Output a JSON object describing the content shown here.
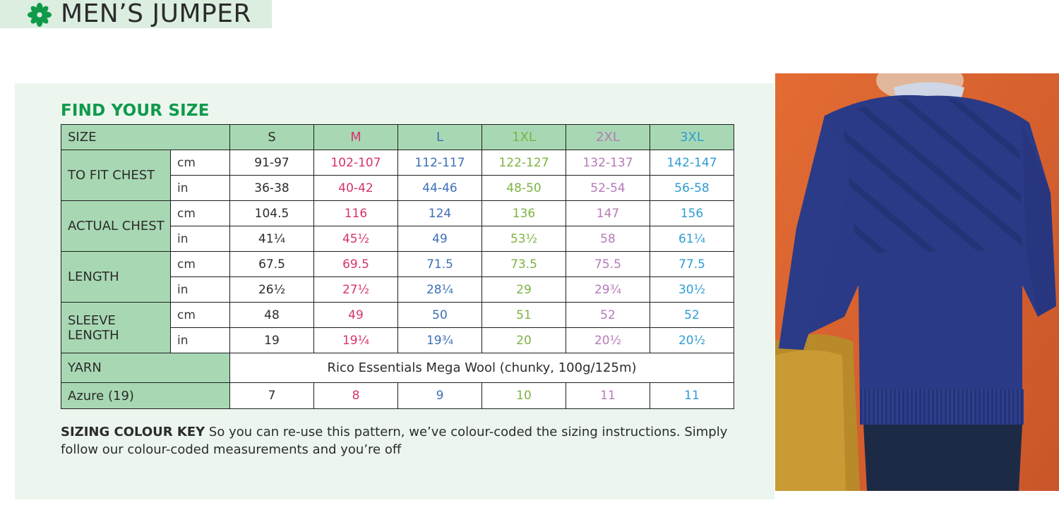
{
  "header": {
    "title": "MEN’S JUMPER",
    "icon": "flower-icon"
  },
  "section_title": "FIND YOUR SIZE",
  "table": {
    "size_label": "SIZE",
    "sizes": [
      "S",
      "M",
      "L",
      "1XL",
      "2XL",
      "3XL"
    ],
    "size_colors": [
      "#2b2b2b",
      "#d6336c",
      "#3d6fb6",
      "#7cb342",
      "#b57ab8",
      "#2e9cd4"
    ],
    "units": {
      "cm": "cm",
      "in": "in"
    },
    "rows": {
      "chest": {
        "label": "TO FIT CHEST",
        "cm": [
          "91-97",
          "102-107",
          "112-117",
          "122-127",
          "132-137",
          "142-147"
        ],
        "in": [
          "36-38",
          "40-42",
          "44-46",
          "48-50",
          "52-54",
          "56-58"
        ]
      },
      "actual": {
        "label": "ACTUAL CHEST",
        "cm": [
          "104.5",
          "116",
          "124",
          "136",
          "147",
          "156"
        ],
        "in": [
          "41¼",
          "45½",
          "49",
          "53½",
          "58",
          "61¼"
        ]
      },
      "length": {
        "label": "LENGTH",
        "cm": [
          "67.5",
          "69.5",
          "71.5",
          "73.5",
          "75.5",
          "77.5"
        ],
        "in": [
          "26½",
          "27½",
          "28¼",
          "29",
          "29¾",
          "30½"
        ]
      },
      "sleeve": {
        "label_line1": "SLEEVE",
        "label_line2": "LENGTH",
        "cm": [
          "48",
          "49",
          "50",
          "51",
          "52",
          "52"
        ],
        "in": [
          "19",
          "19¼",
          "19¾",
          "20",
          "20½",
          "20½"
        ]
      }
    },
    "yarn_label": "YARN",
    "yarn_value": "Rico Essentials Mega Wool (chunky, 100g/125m)",
    "colour_label": "Azure (19)",
    "colour_values": [
      "7",
      "8",
      "9",
      "10",
      "11",
      "11"
    ]
  },
  "key": {
    "bold": "SIZING COLOUR KEY",
    "text": " So you can re-use this pattern, we’ve colour-coded the sizing instructions. Simply follow our colour-coded measurements and you’re off"
  },
  "colors": {
    "accent_green": "#0f9a4a",
    "table_header_green": "#a8d8b3",
    "panel_bg": "#ecf6ee",
    "jumper_blue": "#2a3a86",
    "backdrop_orange": "#d4612c"
  }
}
